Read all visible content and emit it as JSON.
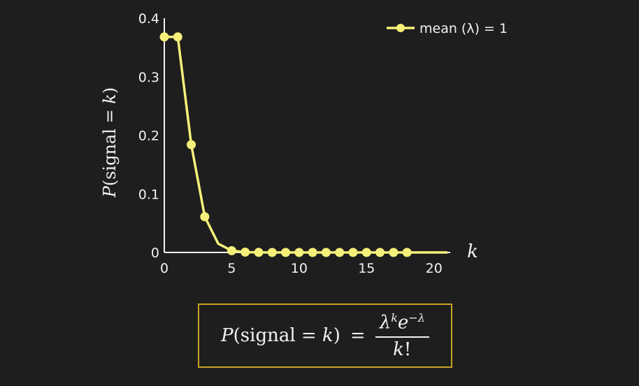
{
  "chart_data": {
    "type": "line",
    "ylabel": "P(signal = k)",
    "xlabel": "k",
    "xlim": [
      0,
      21
    ],
    "ylim": [
      0,
      0.4
    ],
    "xticks": [
      0,
      5,
      10,
      15,
      20
    ],
    "yticks": [
      0,
      0.1,
      0.2,
      0.3,
      0.4
    ],
    "ytick_labels": [
      "0",
      "0.1",
      "0.2",
      "0.3",
      "0.4"
    ],
    "legend_position": "top-right",
    "series": [
      {
        "name": "mean (λ) = 1",
        "color": "#f5f07a",
        "x": [
          0,
          1,
          2,
          3,
          4,
          5,
          6,
          7,
          8,
          9,
          10,
          11,
          12,
          13,
          14,
          15,
          16,
          17,
          18,
          19,
          20,
          21
        ],
        "y": [
          0.368,
          0.368,
          0.184,
          0.061,
          0.015,
          0.003,
          0.0005,
          0.0001,
          0,
          0,
          0,
          0,
          0,
          0,
          0,
          0,
          0,
          0,
          0,
          0,
          0,
          0
        ],
        "markers": [
          0,
          1,
          2,
          3,
          5,
          6,
          7,
          8,
          9,
          10,
          11,
          12,
          13,
          14,
          15,
          16,
          17,
          18
        ]
      }
    ]
  },
  "formula": {
    "lhs_P": "P",
    "lhs_open": "(signal = ",
    "lhs_k": "k",
    "lhs_close": ")",
    "equals": "=",
    "num_lambda": "λ",
    "num_k_sup": "k",
    "num_e": "e",
    "num_exp": "−λ",
    "den_k": "k",
    "den_bang": "!"
  },
  "colors": {
    "background": "#1e1e1e",
    "series": "#f5f07a",
    "axis": "#f2f2f2",
    "formula_border": "#c9a227"
  }
}
